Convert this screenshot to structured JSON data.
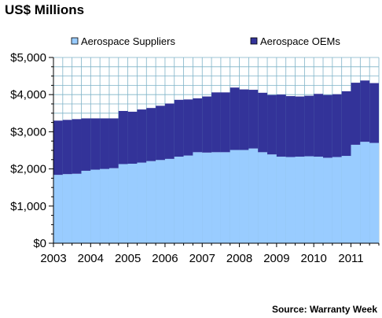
{
  "chart_data": {
    "type": "bar",
    "stacked": true,
    "title": "US$ Millions",
    "source": "Source: Warranty Week",
    "ylim": [
      0,
      5000
    ],
    "yticks": [
      0,
      1000,
      2000,
      3000,
      4000,
      5000
    ],
    "ytick_labels": [
      "$0",
      "$1,000",
      "$2,000",
      "$3,000",
      "$4,000",
      "$5,000"
    ],
    "year_labels": [
      "2003",
      "2004",
      "2005",
      "2006",
      "2007",
      "2008",
      "2009",
      "2010",
      "2011"
    ],
    "grid": true,
    "legend_position": "top",
    "categories": [
      "2003 Q1",
      "2003 Q2",
      "2003 Q3",
      "2003 Q4",
      "2004 Q1",
      "2004 Q2",
      "2004 Q3",
      "2004 Q4",
      "2005 Q1",
      "2005 Q2",
      "2005 Q3",
      "2005 Q4",
      "2006 Q1",
      "2006 Q2",
      "2006 Q3",
      "2006 Q4",
      "2007 Q1",
      "2007 Q2",
      "2007 Q3",
      "2007 Q4",
      "2008 Q1",
      "2008 Q2",
      "2008 Q3",
      "2008 Q4",
      "2009 Q1",
      "2009 Q2",
      "2009 Q3",
      "2009 Q4",
      "2010 Q1",
      "2010 Q2",
      "2010 Q3",
      "2010 Q4",
      "2011 Q1",
      "2011 Q2",
      "2011 Q3"
    ],
    "series": [
      {
        "name": "Aerospace Suppliers",
        "color": "#99ccff",
        "values": [
          1840,
          1860,
          1870,
          1950,
          1980,
          2000,
          2020,
          2130,
          2140,
          2170,
          2210,
          2240,
          2270,
          2330,
          2360,
          2450,
          2440,
          2450,
          2450,
          2510,
          2510,
          2550,
          2450,
          2390,
          2330,
          2320,
          2330,
          2340,
          2330,
          2300,
          2320,
          2350,
          2650,
          2730,
          2700
        ]
      },
      {
        "name": "Aerospace OEMs",
        "color": "#333399",
        "values": [
          1460,
          1460,
          1470,
          1410,
          1380,
          1360,
          1340,
          1430,
          1400,
          1430,
          1430,
          1460,
          1490,
          1530,
          1510,
          1450,
          1510,
          1610,
          1610,
          1680,
          1630,
          1580,
          1600,
          1600,
          1670,
          1640,
          1620,
          1630,
          1690,
          1690,
          1690,
          1740,
          1670,
          1650,
          1610
        ]
      }
    ]
  }
}
